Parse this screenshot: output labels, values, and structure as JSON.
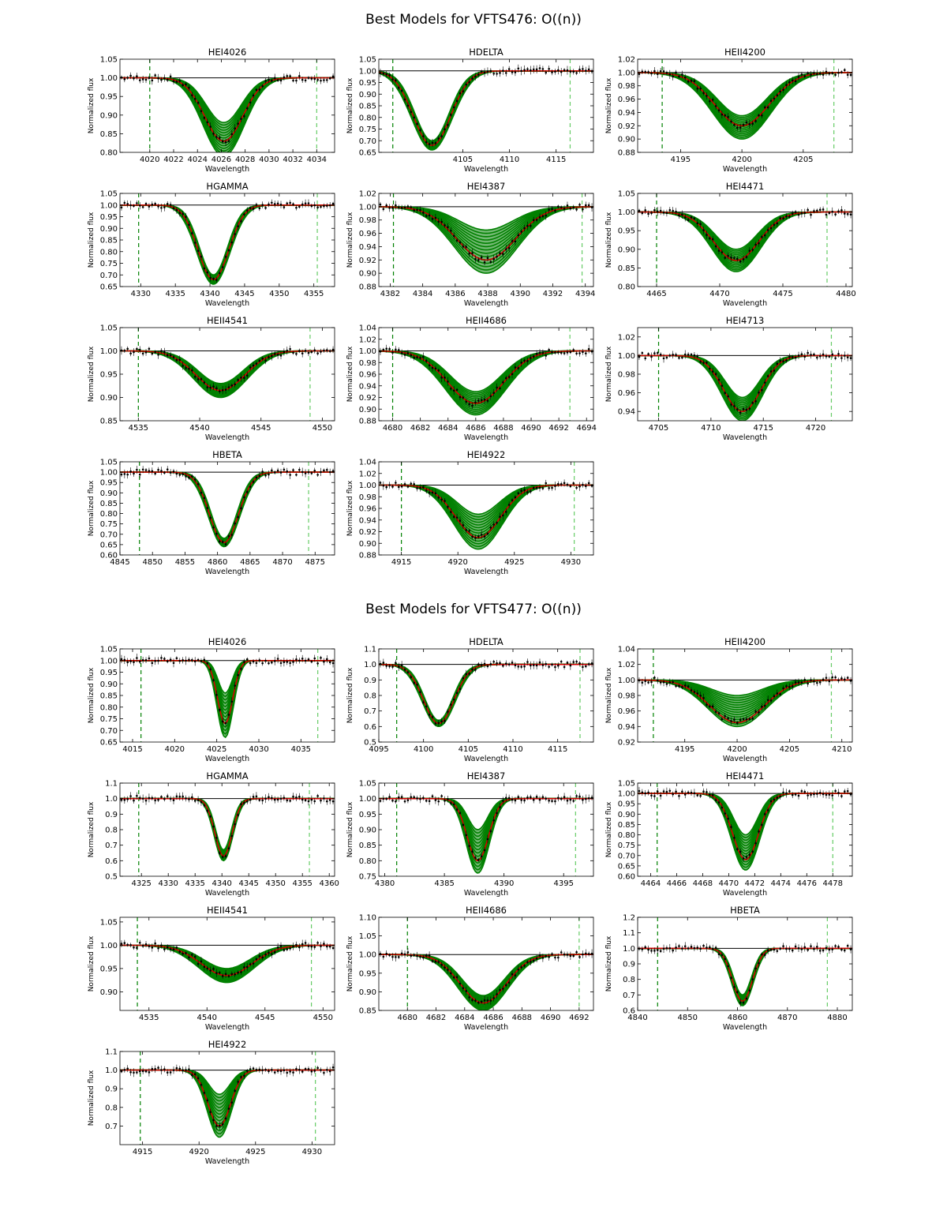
{
  "figures": [
    {
      "title": "Best Models for VFTS476: O((n))"
    },
    {
      "title": "Best Models for VFTS477: O((n))"
    }
  ],
  "common": {
    "xlabel": "Wavelength",
    "ylabel": "Normalized flux",
    "colors": {
      "model_band": "#008000",
      "best_fit": "#d40000",
      "data": "#000000",
      "continuum": "#000000",
      "grid_line": "#00aa00"
    }
  },
  "chart_data": [
    {
      "figure": 0,
      "panel": 0,
      "type": "line",
      "title": "HEI4026",
      "xlim": [
        4017.5,
        4035.5
      ],
      "ylim": [
        0.8,
        1.05
      ],
      "xticks": [
        4020,
        4022,
        4024,
        4026,
        4028,
        4030,
        4032,
        4034
      ],
      "yticks": [
        0.8,
        0.85,
        0.9,
        0.95,
        1.0,
        1.05
      ],
      "ytick_labels": [
        "0.80",
        "0.85",
        "0.90",
        "0.95",
        "1.00",
        "1.05"
      ],
      "vlines": [
        4020.0,
        4034.0
      ],
      "center": 4026.2,
      "width": 1.6,
      "depth_best": 0.17,
      "depth_min": 0.12,
      "depth_max": 0.21
    },
    {
      "figure": 0,
      "panel": 1,
      "type": "line",
      "title": "HDELTA",
      "xlim": [
        4096,
        4119
      ],
      "ylim": [
        0.65,
        1.05
      ],
      "xticks": [
        4105,
        4110,
        4115
      ],
      "yticks": [
        0.65,
        0.7,
        0.75,
        0.8,
        0.85,
        0.9,
        0.95,
        1.0,
        1.05
      ],
      "ytick_labels": [
        "0.65",
        "0.70",
        "0.75",
        "0.80",
        "0.85",
        "0.90",
        "0.95",
        "1.00",
        "1.05"
      ],
      "vlines": [
        4097.5,
        4116.5
      ],
      "center": 4101.7,
      "width": 2.0,
      "depth_best": 0.32,
      "depth_min": 0.3,
      "depth_max": 0.34
    },
    {
      "figure": 0,
      "panel": 2,
      "type": "line",
      "title": "HEII4200",
      "xlim": [
        4191.5,
        4209
      ],
      "ylim": [
        0.88,
        1.02
      ],
      "xticks": [
        4195,
        4200,
        4205
      ],
      "yticks": [
        0.88,
        0.9,
        0.92,
        0.94,
        0.96,
        0.98,
        1.0,
        1.02
      ],
      "ytick_labels": [
        "0.88",
        "0.90",
        "0.92",
        "0.94",
        "0.96",
        "0.98",
        "1.00",
        "1.02"
      ],
      "vlines": [
        4193.5,
        4207.5
      ],
      "center": 4200.0,
      "width": 2.2,
      "depth_best": 0.08,
      "depth_min": 0.065,
      "depth_max": 0.1
    },
    {
      "figure": 0,
      "panel": 3,
      "type": "line",
      "title": "HGAMMA",
      "xlim": [
        4327,
        4358
      ],
      "ylim": [
        0.65,
        1.05
      ],
      "xticks": [
        4330,
        4335,
        4340,
        4345,
        4350,
        4355
      ],
      "yticks": [
        0.65,
        0.7,
        0.75,
        0.8,
        0.85,
        0.9,
        0.95,
        1.0,
        1.05
      ],
      "ytick_labels": [
        "0.65",
        "0.70",
        "0.75",
        "0.80",
        "0.85",
        "0.90",
        "0.95",
        "1.00",
        "1.05"
      ],
      "vlines": [
        4329.7,
        4355.5
      ],
      "center": 4340.5,
      "width": 2.2,
      "depth_best": 0.32,
      "depth_min": 0.3,
      "depth_max": 0.34
    },
    {
      "figure": 0,
      "panel": 4,
      "type": "line",
      "title": "HEI4387",
      "xlim": [
        4381.3,
        4394.5
      ],
      "ylim": [
        0.88,
        1.02
      ],
      "xticks": [
        4382,
        4384,
        4386,
        4388,
        4390,
        4392,
        4394
      ],
      "yticks": [
        0.88,
        0.9,
        0.92,
        0.94,
        0.96,
        0.98,
        1.0,
        1.02
      ],
      "ytick_labels": [
        "0.88",
        "0.90",
        "0.92",
        "0.94",
        "0.96",
        "0.98",
        "1.00",
        "1.02"
      ],
      "vlines": [
        4382.2,
        4393.8
      ],
      "center": 4387.9,
      "width": 1.8,
      "depth_best": 0.08,
      "depth_min": 0.035,
      "depth_max": 0.1
    },
    {
      "figure": 0,
      "panel": 5,
      "type": "line",
      "title": "HEI4471",
      "xlim": [
        4463.5,
        4480.5
      ],
      "ylim": [
        0.8,
        1.05
      ],
      "xticks": [
        4465,
        4470,
        4475,
        4480
      ],
      "yticks": [
        0.8,
        0.85,
        0.9,
        0.95,
        1.0,
        1.05
      ],
      "ytick_labels": [
        "0.80",
        "0.85",
        "0.90",
        "0.95",
        "1.00",
        "1.05"
      ],
      "vlines": [
        4465.0,
        4478.5
      ],
      "center": 4471.3,
      "width": 1.8,
      "depth_best": 0.13,
      "depth_min": 0.1,
      "depth_max": 0.16
    },
    {
      "figure": 0,
      "panel": 6,
      "type": "line",
      "title": "HEII4541",
      "xlim": [
        4533.5,
        4551
      ],
      "ylim": [
        0.85,
        1.05
      ],
      "xticks": [
        4535,
        4540,
        4545,
        4550
      ],
      "yticks": [
        0.85,
        0.9,
        0.95,
        1.0,
        1.05
      ],
      "ytick_labels": [
        "0.85",
        "0.90",
        "0.95",
        "1.00",
        "1.05"
      ],
      "vlines": [
        4535.0,
        4549.0
      ],
      "center": 4541.7,
      "width": 2.0,
      "depth_best": 0.085,
      "depth_min": 0.07,
      "depth_max": 0.1
    },
    {
      "figure": 0,
      "panel": 7,
      "type": "line",
      "title": "HEII4686",
      "xlim": [
        4679,
        4694.5
      ],
      "ylim": [
        0.88,
        1.04
      ],
      "xticks": [
        4680,
        4682,
        4684,
        4686,
        4688,
        4690,
        4692,
        4694
      ],
      "yticks": [
        0.88,
        0.9,
        0.92,
        0.94,
        0.96,
        0.98,
        1.0,
        1.02,
        1.04
      ],
      "ytick_labels": [
        "0.88",
        "0.90",
        "0.92",
        "0.94",
        "0.96",
        "0.98",
        "1.00",
        "1.02",
        "1.04"
      ],
      "vlines": [
        4680.0,
        4692.8
      ],
      "center": 4686.0,
      "width": 2.0,
      "depth_best": 0.09,
      "depth_min": 0.07,
      "depth_max": 0.11
    },
    {
      "figure": 0,
      "panel": 8,
      "type": "line",
      "title": "HEI4713",
      "xlim": [
        4703,
        4723.5
      ],
      "ylim": [
        0.93,
        1.03
      ],
      "xticks": [
        4705,
        4710,
        4715,
        4720
      ],
      "yticks": [
        0.94,
        0.96,
        0.98,
        1.0,
        1.02
      ],
      "ytick_labels": [
        "0.94",
        "0.96",
        "0.98",
        "1.00",
        "1.02"
      ],
      "vlines": [
        4705.0,
        4721.5
      ],
      "center": 4713.0,
      "width": 1.8,
      "depth_best": 0.06,
      "depth_min": 0.045,
      "depth_max": 0.07
    },
    {
      "figure": 0,
      "panel": 9,
      "type": "line",
      "title": "HBETA",
      "xlim": [
        4845,
        4878
      ],
      "ylim": [
        0.6,
        1.05
      ],
      "xticks": [
        4845,
        4850,
        4855,
        4860,
        4865,
        4870,
        4875
      ],
      "yticks": [
        0.6,
        0.65,
        0.7,
        0.75,
        0.8,
        0.85,
        0.9,
        0.95,
        1.0,
        1.05
      ],
      "ytick_labels": [
        "0.60",
        "0.65",
        "0.70",
        "0.75",
        "0.80",
        "0.85",
        "0.90",
        "0.95",
        "1.00",
        "1.05"
      ],
      "vlines": [
        4848.0,
        4874.0
      ],
      "center": 4861.0,
      "width": 2.2,
      "depth_best": 0.34,
      "depth_min": 0.32,
      "depth_max": 0.36
    },
    {
      "figure": 0,
      "panel": 10,
      "type": "line",
      "title": "HEI4922",
      "xlim": [
        4913,
        4932
      ],
      "ylim": [
        0.88,
        1.04
      ],
      "xticks": [
        4915,
        4920,
        4925,
        4930
      ],
      "yticks": [
        0.88,
        0.9,
        0.92,
        0.94,
        0.96,
        0.98,
        1.0,
        1.02,
        1.04
      ],
      "ytick_labels": [
        "0.88",
        "0.90",
        "0.92",
        "0.94",
        "0.96",
        "0.98",
        "1.00",
        "1.02",
        "1.04"
      ],
      "vlines": [
        4915.0,
        4930.3
      ],
      "center": 4921.8,
      "width": 2.0,
      "depth_best": 0.09,
      "depth_min": 0.05,
      "depth_max": 0.11
    },
    {
      "figure": 1,
      "panel": 0,
      "type": "line",
      "title": "HEI4026",
      "xlim": [
        4013.5,
        4039
      ],
      "ylim": [
        0.65,
        1.05
      ],
      "xticks": [
        4015,
        4020,
        4025,
        4030,
        4035
      ],
      "yticks": [
        0.65,
        0.7,
        0.75,
        0.8,
        0.85,
        0.9,
        0.95,
        1.0,
        1.05
      ],
      "ytick_labels": [
        "0.65",
        "0.70",
        "0.75",
        "0.80",
        "0.85",
        "0.90",
        "0.95",
        "1.00",
        "1.05"
      ],
      "vlines": [
        4016.0,
        4037.0
      ],
      "center": 4026.0,
      "width": 0.9,
      "depth_best": 0.27,
      "depth_min": 0.14,
      "depth_max": 0.33
    },
    {
      "figure": 1,
      "panel": 1,
      "type": "line",
      "title": "HDELTA",
      "xlim": [
        4095,
        4119
      ],
      "ylim": [
        0.5,
        1.1
      ],
      "xticks": [
        4095,
        4100,
        4105,
        4110,
        4115
      ],
      "yticks": [
        0.5,
        0.6,
        0.7,
        0.8,
        0.9,
        1.0,
        1.1
      ],
      "ytick_labels": [
        "0.5",
        "0.6",
        "0.7",
        "0.8",
        "0.9",
        "1.0",
        "1.1"
      ],
      "vlines": [
        4097.0,
        4117.5
      ],
      "center": 4101.7,
      "width": 1.7,
      "depth_best": 0.38,
      "depth_min": 0.36,
      "depth_max": 0.4
    },
    {
      "figure": 1,
      "panel": 2,
      "type": "line",
      "title": "HEII4200",
      "xlim": [
        4190.5,
        4211
      ],
      "ylim": [
        0.92,
        1.04
      ],
      "xticks": [
        4195,
        4200,
        4205,
        4210
      ],
      "yticks": [
        0.92,
        0.94,
        0.96,
        0.98,
        1.0,
        1.02,
        1.04
      ],
      "ytick_labels": [
        "0.92",
        "0.94",
        "0.96",
        "0.98",
        "1.00",
        "1.02",
        "1.04"
      ],
      "vlines": [
        4192.0,
        4209.0
      ],
      "center": 4200.0,
      "width": 2.6,
      "depth_best": 0.055,
      "depth_min": 0.02,
      "depth_max": 0.06
    },
    {
      "figure": 1,
      "panel": 3,
      "type": "line",
      "title": "HGAMMA",
      "xlim": [
        4321,
        4361
      ],
      "ylim": [
        0.5,
        1.1
      ],
      "xticks": [
        4325,
        4330,
        4335,
        4340,
        4345,
        4350,
        4355,
        4360
      ],
      "yticks": [
        0.5,
        0.6,
        0.7,
        0.8,
        0.9,
        1.0,
        1.1
      ],
      "ytick_labels": [
        "0.5",
        "0.6",
        "0.7",
        "0.8",
        "0.9",
        "1.0",
        "1.1"
      ],
      "vlines": [
        4324.5,
        4356.3
      ],
      "center": 4340.3,
      "width": 1.6,
      "depth_best": 0.37,
      "depth_min": 0.33,
      "depth_max": 0.4
    },
    {
      "figure": 1,
      "panel": 4,
      "type": "line",
      "title": "HEI4387",
      "xlim": [
        4379.5,
        4397.5
      ],
      "ylim": [
        0.75,
        1.05
      ],
      "xticks": [
        4380,
        4385,
        4390,
        4395
      ],
      "yticks": [
        0.75,
        0.8,
        0.85,
        0.9,
        0.95,
        1.0,
        1.05
      ],
      "ytick_labels": [
        "0.75",
        "0.80",
        "0.85",
        "0.90",
        "0.95",
        "1.00",
        "1.05"
      ],
      "vlines": [
        4381.0,
        4396.0
      ],
      "center": 4387.8,
      "width": 0.9,
      "depth_best": 0.2,
      "depth_min": 0.1,
      "depth_max": 0.24
    },
    {
      "figure": 1,
      "panel": 5,
      "type": "line",
      "title": "HEI4471",
      "xlim": [
        4463,
        4479.5
      ],
      "ylim": [
        0.6,
        1.05
      ],
      "xticks": [
        4464,
        4466,
        4468,
        4470,
        4472,
        4474,
        4476,
        4478
      ],
      "yticks": [
        0.6,
        0.65,
        0.7,
        0.75,
        0.8,
        0.85,
        0.9,
        0.95,
        1.0,
        1.05
      ],
      "ytick_labels": [
        "0.60",
        "0.65",
        "0.70",
        "0.75",
        "0.80",
        "0.85",
        "0.90",
        "0.95",
        "1.00",
        "1.05"
      ],
      "vlines": [
        4464.5,
        4478.0
      ],
      "center": 4471.3,
      "width": 1.0,
      "depth_best": 0.32,
      "depth_min": 0.2,
      "depth_max": 0.37
    },
    {
      "figure": 1,
      "panel": 6,
      "type": "line",
      "title": "HEII4541",
      "xlim": [
        4532.5,
        4551
      ],
      "ylim": [
        0.86,
        1.06
      ],
      "xticks": [
        4535,
        4540,
        4545,
        4550
      ],
      "yticks": [
        0.9,
        0.95,
        1.0,
        1.05
      ],
      "ytick_labels": [
        "0.90",
        "0.95",
        "1.00",
        "1.05"
      ],
      "vlines": [
        4534.0,
        4549.0
      ],
      "center": 4541.7,
      "width": 2.2,
      "depth_best": 0.065,
      "depth_min": 0.05,
      "depth_max": 0.08
    },
    {
      "figure": 1,
      "panel": 7,
      "type": "line",
      "title": "HEII4686",
      "xlim": [
        4678,
        4693
      ],
      "ylim": [
        0.85,
        1.1
      ],
      "xticks": [
        4680,
        4682,
        4684,
        4686,
        4688,
        4690,
        4692
      ],
      "yticks": [
        0.85,
        0.9,
        0.95,
        1.0,
        1.05,
        1.1
      ],
      "ytick_labels": [
        "0.85",
        "0.90",
        "0.95",
        "1.00",
        "1.05",
        "1.10"
      ],
      "vlines": [
        4680.0,
        4692.0
      ],
      "center": 4685.3,
      "width": 1.6,
      "depth_best": 0.13,
      "depth_min": 0.11,
      "depth_max": 0.15
    },
    {
      "figure": 1,
      "panel": 8,
      "type": "line",
      "title": "HBETA",
      "xlim": [
        4840,
        4883
      ],
      "ylim": [
        0.6,
        1.2
      ],
      "xticks": [
        4840,
        4850,
        4860,
        4870,
        4880
      ],
      "yticks": [
        0.6,
        0.7,
        0.8,
        0.9,
        1.0,
        1.1,
        1.2
      ],
      "ytick_labels": [
        "0.6",
        "0.7",
        "0.8",
        "0.9",
        "1.0",
        "1.1",
        "1.2"
      ],
      "vlines": [
        4844.0,
        4878.0
      ],
      "center": 4861.0,
      "width": 2.0,
      "depth_best": 0.34,
      "depth_min": 0.3,
      "depth_max": 0.37
    },
    {
      "figure": 1,
      "panel": 9,
      "type": "line",
      "title": "HEI4922",
      "xlim": [
        4913,
        4932
      ],
      "ylim": [
        0.6,
        1.1
      ],
      "xticks": [
        4915,
        4920,
        4925,
        4930
      ],
      "yticks": [
        0.7,
        0.8,
        0.9,
        1.0,
        1.1
      ],
      "ytick_labels": [
        "0.7",
        "0.8",
        "0.9",
        "1.0",
        "1.1"
      ],
      "vlines": [
        4914.8,
        4930.3
      ],
      "center": 4921.8,
      "width": 1.0,
      "depth_best": 0.3,
      "depth_min": 0.13,
      "depth_max": 0.36
    }
  ]
}
